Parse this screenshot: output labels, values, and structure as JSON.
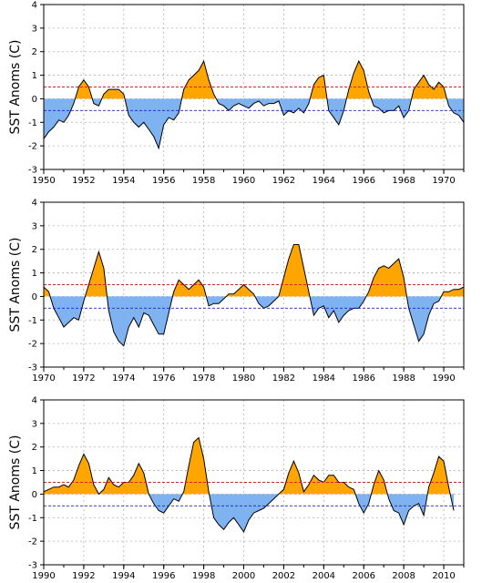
{
  "chart_data": [
    {
      "type": "area",
      "ylabel": "SST Anoms (C)",
      "xlim": [
        1950,
        1971
      ],
      "ylim": [
        -3,
        4
      ],
      "yticks": [
        -3,
        -2,
        -1,
        0,
        1,
        2,
        3,
        4
      ],
      "xticks": [
        1950,
        1952,
        1954,
        1956,
        1958,
        1960,
        1962,
        1964,
        1966,
        1968,
        1970
      ],
      "threshold_lines": [
        0.5,
        -0.5
      ],
      "grid": true,
      "colors": {
        "positive": "#FFA500",
        "negative": "#7FB2F0",
        "upper_line": "#E02020",
        "lower_line": "#2020C0"
      },
      "series": [
        {
          "x": [
            1950.0,
            1950.25,
            1950.5,
            1950.75,
            1951.0,
            1951.25,
            1951.5,
            1951.75,
            1952.0,
            1952.25,
            1952.5,
            1952.75,
            1953.0,
            1953.25,
            1953.5,
            1953.75,
            1954.0,
            1954.25,
            1954.5,
            1954.75,
            1955.0,
            1955.25,
            1955.5,
            1955.75,
            1956.0,
            1956.25,
            1956.5,
            1956.75,
            1957.0,
            1957.25,
            1957.5,
            1957.75,
            1958.0,
            1958.25,
            1958.5,
            1958.75,
            1959.0,
            1959.25,
            1959.5,
            1959.75,
            1960.0,
            1960.25,
            1960.5,
            1960.75,
            1961.0,
            1961.25,
            1961.5,
            1961.75,
            1962.0,
            1962.25,
            1962.5,
            1962.75,
            1963.0,
            1963.25,
            1963.5,
            1963.75,
            1964.0,
            1964.25,
            1964.5,
            1964.75,
            1965.0,
            1965.25,
            1965.5,
            1965.75,
            1966.0,
            1966.25,
            1966.5,
            1966.75,
            1967.0,
            1967.25,
            1967.5,
            1967.75,
            1968.0,
            1968.25,
            1968.5,
            1968.75,
            1969.0,
            1969.25,
            1969.5,
            1969.75,
            1970.0,
            1970.25,
            1970.5,
            1970.75,
            1971.0
          ],
          "values": [
            -1.7,
            -1.4,
            -1.2,
            -0.9,
            -1.0,
            -0.7,
            -0.2,
            0.5,
            0.8,
            0.5,
            -0.2,
            -0.3,
            0.2,
            0.4,
            0.4,
            0.4,
            0.2,
            -0.7,
            -1.0,
            -1.2,
            -1.0,
            -1.3,
            -1.6,
            -2.1,
            -1.1,
            -0.8,
            -0.9,
            -0.6,
            0.4,
            0.8,
            1.0,
            1.2,
            1.6,
            0.8,
            0.2,
            -0.2,
            -0.3,
            -0.5,
            -0.3,
            -0.2,
            -0.3,
            -0.4,
            -0.2,
            -0.1,
            -0.3,
            -0.2,
            -0.2,
            -0.1,
            -0.7,
            -0.5,
            -0.6,
            -0.4,
            -0.6,
            -0.2,
            0.6,
            0.9,
            1.0,
            -0.5,
            -0.8,
            -1.1,
            -0.5,
            0.4,
            1.1,
            1.6,
            1.2,
            0.3,
            -0.3,
            -0.4,
            -0.6,
            -0.5,
            -0.5,
            -0.3,
            -0.8,
            -0.5,
            0.4,
            0.7,
            1.0,
            0.6,
            0.4,
            0.7,
            0.5,
            -0.3,
            -0.6,
            -0.7,
            -1.0
          ]
        }
      ]
    },
    {
      "type": "area",
      "ylabel": "SST Anoms (C)",
      "xlim": [
        1970,
        1991
      ],
      "ylim": [
        -3,
        4
      ],
      "yticks": [
        -3,
        -2,
        -1,
        0,
        1,
        2,
        3,
        4
      ],
      "xticks": [
        1970,
        1972,
        1974,
        1976,
        1978,
        1980,
        1982,
        1984,
        1986,
        1988,
        1990
      ],
      "threshold_lines": [
        0.5,
        -0.5
      ],
      "grid": true,
      "colors": {
        "positive": "#FFA500",
        "negative": "#7FB2F0",
        "upper_line": "#E02020",
        "lower_line": "#2020C0"
      },
      "series": [
        {
          "x": [
            1970.0,
            1970.25,
            1970.5,
            1970.75,
            1971.0,
            1971.25,
            1971.5,
            1971.75,
            1972.0,
            1972.25,
            1972.5,
            1972.75,
            1973.0,
            1973.25,
            1973.5,
            1973.75,
            1974.0,
            1974.25,
            1974.5,
            1974.75,
            1975.0,
            1975.25,
            1975.5,
            1975.75,
            1976.0,
            1976.25,
            1976.5,
            1976.75,
            1977.0,
            1977.25,
            1977.5,
            1977.75,
            1978.0,
            1978.25,
            1978.5,
            1978.75,
            1979.0,
            1979.25,
            1979.5,
            1979.75,
            1980.0,
            1980.25,
            1980.5,
            1980.75,
            1981.0,
            1981.25,
            1981.5,
            1981.75,
            1982.0,
            1982.25,
            1982.5,
            1982.75,
            1983.0,
            1983.25,
            1983.5,
            1983.75,
            1984.0,
            1984.25,
            1984.5,
            1984.75,
            1985.0,
            1985.25,
            1985.5,
            1985.75,
            1986.0,
            1986.25,
            1986.5,
            1986.75,
            1987.0,
            1987.25,
            1987.5,
            1987.75,
            1988.0,
            1988.25,
            1988.5,
            1988.75,
            1989.0,
            1989.25,
            1989.5,
            1989.75,
            1990.0,
            1990.25,
            1990.5,
            1990.75,
            1991.0
          ],
          "values": [
            0.4,
            0.2,
            -0.5,
            -0.9,
            -1.3,
            -1.1,
            -0.9,
            -1.0,
            -0.2,
            0.5,
            1.2,
            1.9,
            1.2,
            -0.6,
            -1.5,
            -1.9,
            -2.1,
            -1.3,
            -0.9,
            -1.3,
            -0.7,
            -0.8,
            -1.2,
            -1.6,
            -1.6,
            -0.7,
            0.2,
            0.7,
            0.5,
            0.3,
            0.5,
            0.7,
            0.4,
            -0.4,
            -0.3,
            -0.3,
            -0.1,
            0.1,
            0.1,
            0.3,
            0.5,
            0.3,
            0.1,
            -0.3,
            -0.5,
            -0.4,
            -0.2,
            0.0,
            0.8,
            1.6,
            2.2,
            2.2,
            1.2,
            0.2,
            -0.8,
            -0.5,
            -0.4,
            -0.9,
            -0.6,
            -1.1,
            -0.8,
            -0.6,
            -0.5,
            -0.5,
            -0.2,
            0.2,
            0.8,
            1.2,
            1.3,
            1.2,
            1.4,
            1.6,
            0.8,
            -0.5,
            -1.2,
            -1.9,
            -1.6,
            -0.8,
            -0.3,
            -0.2,
            0.2,
            0.2,
            0.3,
            0.3,
            0.4
          ]
        }
      ]
    },
    {
      "type": "area",
      "ylabel": "SST Anoms (C)",
      "xlim": [
        1990,
        2011
      ],
      "ylim": [
        -3,
        4
      ],
      "yticks": [
        -3,
        -2,
        -1,
        0,
        1,
        2,
        3,
        4
      ],
      "xticks": [
        1990,
        1992,
        1994,
        1996,
        1998,
        2000,
        2002,
        2004,
        2006,
        2008,
        2010
      ],
      "threshold_lines": [
        0.5,
        -0.5
      ],
      "grid": true,
      "colors": {
        "positive": "#FFA500",
        "negative": "#7FB2F0",
        "upper_line": "#E02020",
        "lower_line": "#2020C0"
      },
      "series": [
        {
          "x": [
            1990.0,
            1990.25,
            1990.5,
            1990.75,
            1991.0,
            1991.25,
            1991.5,
            1991.75,
            1992.0,
            1992.25,
            1992.5,
            1992.75,
            1993.0,
            1993.25,
            1993.5,
            1993.75,
            1994.0,
            1994.25,
            1994.5,
            1994.75,
            1995.0,
            1995.25,
            1995.5,
            1995.75,
            1996.0,
            1996.25,
            1996.5,
            1996.75,
            1997.0,
            1997.25,
            1997.5,
            1997.75,
            1998.0,
            1998.25,
            1998.5,
            1998.75,
            1999.0,
            1999.25,
            1999.5,
            1999.75,
            2000.0,
            2000.25,
            2000.5,
            2000.75,
            2001.0,
            2001.25,
            2001.5,
            2001.75,
            2002.0,
            2002.25,
            2002.5,
            2002.75,
            2003.0,
            2003.25,
            2003.5,
            2003.75,
            2004.0,
            2004.25,
            2004.5,
            2004.75,
            2005.0,
            2005.25,
            2005.5,
            2005.75,
            2006.0,
            2006.25,
            2006.5,
            2006.75,
            2007.0,
            2007.25,
            2007.5,
            2007.75,
            2008.0,
            2008.25,
            2008.5,
            2008.75,
            2009.0,
            2009.25,
            2009.5,
            2009.75,
            2010.0,
            2010.25,
            2010.5
          ],
          "values": [
            0.1,
            0.2,
            0.3,
            0.3,
            0.4,
            0.3,
            0.6,
            1.2,
            1.7,
            1.3,
            0.4,
            0.0,
            0.2,
            0.7,
            0.4,
            0.3,
            0.5,
            0.5,
            0.8,
            1.3,
            0.9,
            0.0,
            -0.4,
            -0.7,
            -0.8,
            -0.5,
            -0.2,
            -0.3,
            0.1,
            1.2,
            2.2,
            2.4,
            1.5,
            0.1,
            -1.0,
            -1.3,
            -1.5,
            -1.2,
            -1.0,
            -1.3,
            -1.6,
            -1.1,
            -0.8,
            -0.7,
            -0.6,
            -0.4,
            -0.2,
            0.0,
            0.2,
            0.9,
            1.4,
            0.9,
            0.1,
            0.4,
            0.8,
            0.6,
            0.5,
            0.8,
            0.8,
            0.5,
            0.5,
            0.3,
            0.2,
            -0.4,
            -0.8,
            -0.4,
            0.4,
            1.0,
            0.6,
            -0.2,
            -0.7,
            -0.8,
            -1.3,
            -0.7,
            -0.5,
            -0.4,
            -0.9,
            0.3,
            0.9,
            1.6,
            1.4,
            0.3,
            -0.7
          ]
        }
      ]
    }
  ]
}
